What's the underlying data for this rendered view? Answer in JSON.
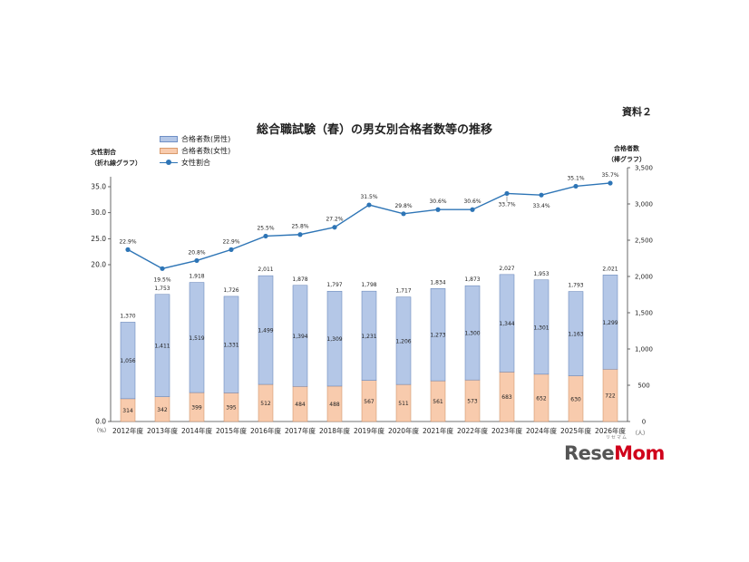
{
  "doc_label": "資料２",
  "left_axis_note": [
    "女性割合",
    "（折れ線グラフ）"
  ],
  "right_axis_note": [
    "合格者数",
    "（棒グラフ）"
  ],
  "brand": {
    "text_main": "Rese",
    "text_accent": "Mom",
    "ruby": "リセマム",
    "main_color": "#555555",
    "accent_color": "#d0021b"
  },
  "colors": {
    "male": "#b4c7e7",
    "female": "#f8cbad",
    "line": "#2e75b6"
  },
  "chart_data": {
    "type": "bar+line",
    "title": "総合職試験（春）の男女別合格者数等の推移",
    "categories": [
      "2012年度",
      "2013年度",
      "2014年度",
      "2015年度",
      "2016年度",
      "2017年度",
      "2018年度",
      "2019年度",
      "2020年度",
      "2021年度",
      "2022年度",
      "2023年度",
      "2024年度",
      "2025年度",
      "2026年度"
    ],
    "series": [
      {
        "name": "合格者数(男性)",
        "kind": "stacked-bar",
        "values": [
          1056,
          1411,
          1519,
          1331,
          1499,
          1394,
          1309,
          1231,
          1206,
          1273,
          1300,
          1344,
          1301,
          1163,
          1299
        ],
        "labels": [
          "1,056",
          "1,411",
          "1,519",
          "1,331",
          "1,499",
          "1,394",
          "1,309",
          "1,231",
          "1,206",
          "1,273",
          "1,300",
          "1,344",
          "1,301",
          "1,163",
          "1,299"
        ]
      },
      {
        "name": "合格者数(女性)",
        "kind": "stacked-bar",
        "values": [
          314,
          342,
          399,
          395,
          512,
          484,
          488,
          567,
          511,
          561,
          573,
          683,
          652,
          630,
          722
        ],
        "labels": [
          "314",
          "342",
          "399",
          "395",
          "512",
          "484",
          "488",
          "567",
          "511",
          "561",
          "573",
          "683",
          "652",
          "630",
          "722"
        ]
      },
      {
        "name": "女性割合",
        "kind": "line",
        "values": [
          22.9,
          19.5,
          20.8,
          22.9,
          25.5,
          25.8,
          27.2,
          31.5,
          29.8,
          30.6,
          30.6,
          33.7,
          33.4,
          35.1,
          35.7
        ],
        "labels": [
          "22.9%",
          "19.5%",
          "20.8%",
          "22.9%",
          "25.5%",
          "25.8%",
          "27.2%",
          "31.5%",
          "29.8%",
          "30.6%",
          "30.6%",
          "33.7%",
          "33.4%",
          "35.1%",
          "35.7%"
        ]
      }
    ],
    "totals": [
      "1,370",
      "1,753",
      "1,918",
      "1,726",
      "2,011",
      "1,878",
      "1,797",
      "1,798",
      "1,717",
      "1,834",
      "1,873",
      "2,027",
      "1,953",
      "1,793",
      "2,021"
    ],
    "left_axis": {
      "unit": "（%）",
      "ticks": [
        "0.0",
        "20.0",
        "25.0",
        "30.0",
        "35.0"
      ],
      "tick_values": [
        0,
        20,
        25,
        30,
        35
      ]
    },
    "right_axis": {
      "unit": "（人）",
      "range": [
        0,
        3500
      ],
      "ticks": [
        "0",
        "500",
        "1,000",
        "1,500",
        "2,000",
        "2,500",
        "3,000",
        "3,500"
      ],
      "tick_values": [
        0,
        500,
        1000,
        1500,
        2000,
        2500,
        3000,
        3500
      ]
    },
    "legend_position": "top-left",
    "grid": false
  }
}
